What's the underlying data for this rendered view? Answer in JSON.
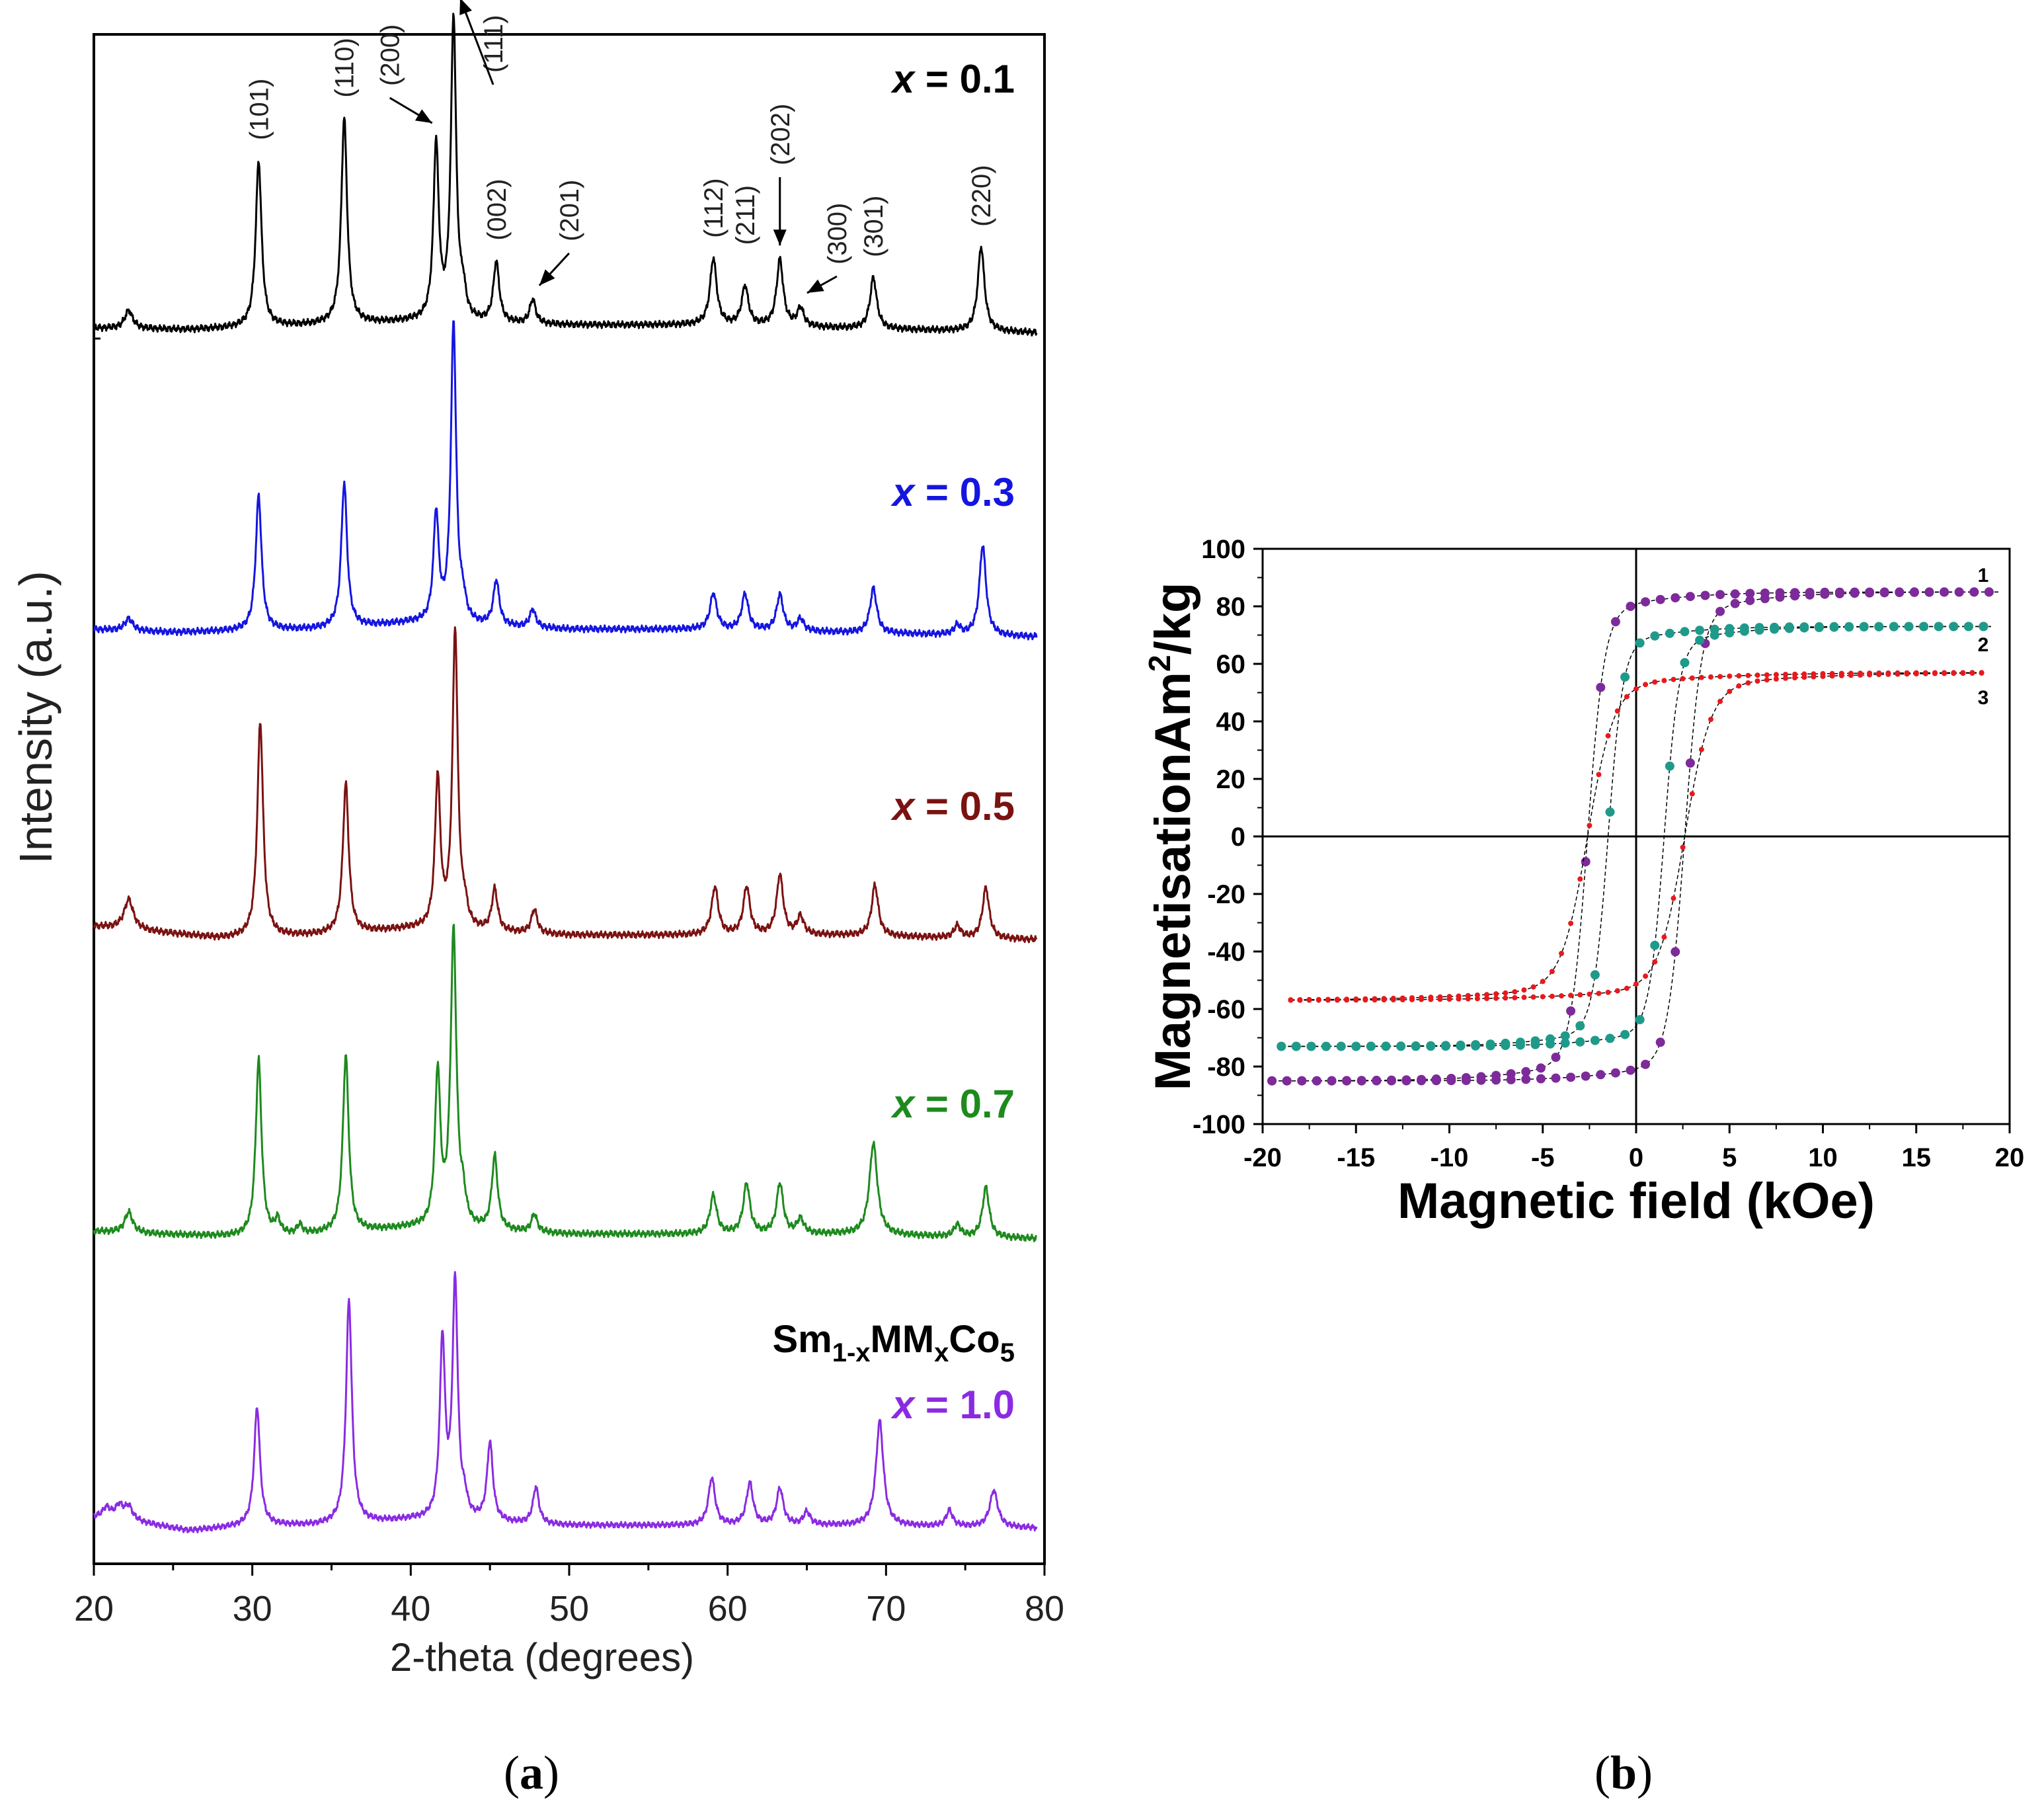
{
  "panel_labels": {
    "a": "a",
    "b": "b"
  },
  "chart_data": [
    {
      "type": "line",
      "panel": "a",
      "title": "",
      "xlabel": "2-theta (degrees)",
      "ylabel": "Intensity (a.u.)",
      "xlim": [
        20,
        80
      ],
      "xticks": [
        20,
        30,
        40,
        50,
        60,
        70,
        80
      ],
      "y_ticks_shown": false,
      "compound_label": {
        "base": "Sm",
        "sub1": "1-x",
        "mid": "MM",
        "sub2": "x",
        "end": "Co",
        "sub3": "5"
      },
      "series": [
        {
          "name": "x = 0.1",
          "label_var": "x",
          "label_rest": " = 0.1",
          "color": "#000000",
          "baseline": [
            [
              20,
              0.03
            ],
            [
              26,
              0.025
            ],
            [
              34,
              0.04
            ],
            [
              40,
              0.05
            ],
            [
              50,
              0.04
            ],
            [
              58,
              0.04
            ],
            [
              67,
              0.03
            ],
            [
              75,
              0.02
            ],
            [
              79.5,
              0.015
            ]
          ],
          "peaks": [
            [
              22.2,
              0.06,
              0.3
            ],
            [
              30.4,
              0.55,
              0.22
            ],
            [
              35.8,
              0.68,
              0.22
            ],
            [
              41.6,
              0.58,
              0.2
            ],
            [
              42.7,
              1.0,
              0.2
            ],
            [
              43.3,
              0.08,
              0.2
            ],
            [
              45.4,
              0.2,
              0.22
            ],
            [
              47.7,
              0.08,
              0.22
            ],
            [
              59.1,
              0.22,
              0.25
            ],
            [
              61.1,
              0.13,
              0.25
            ],
            [
              63.3,
              0.22,
              0.25
            ],
            [
              64.6,
              0.06,
              0.25
            ],
            [
              69.2,
              0.17,
              0.25
            ],
            [
              76.0,
              0.28,
              0.25
            ]
          ]
        },
        {
          "name": "x = 0.3",
          "label_var": "x",
          "label_rest": " = 0.3",
          "color": "#1515e0",
          "baseline": [
            [
              20,
              0.04
            ],
            [
              25,
              0.03
            ],
            [
              34,
              0.04
            ],
            [
              40,
              0.06
            ],
            [
              50,
              0.04
            ],
            [
              58,
              0.04
            ],
            [
              67,
              0.03
            ],
            [
              75,
              0.02
            ],
            [
              79.5,
              0.015
            ]
          ],
          "peaks": [
            [
              22.2,
              0.04,
              0.3
            ],
            [
              30.4,
              0.45,
              0.22
            ],
            [
              35.8,
              0.48,
              0.22
            ],
            [
              41.6,
              0.36,
              0.2
            ],
            [
              42.7,
              1.0,
              0.2
            ],
            [
              43.3,
              0.06,
              0.2
            ],
            [
              45.4,
              0.15,
              0.22
            ],
            [
              47.7,
              0.06,
              0.22
            ],
            [
              59.1,
              0.12,
              0.25
            ],
            [
              61.1,
              0.12,
              0.25
            ],
            [
              63.3,
              0.12,
              0.25
            ],
            [
              64.6,
              0.04,
              0.25
            ],
            [
              69.2,
              0.15,
              0.25
            ],
            [
              74.5,
              0.03,
              0.25
            ],
            [
              76.1,
              0.3,
              0.25
            ]
          ]
        },
        {
          "name": "x = 0.5",
          "label_var": "x",
          "label_rest": " = 0.5",
          "color": "#7b1212",
          "baseline": [
            [
              20,
              0.06
            ],
            [
              24,
              0.04
            ],
            [
              28,
              0.02
            ],
            [
              34,
              0.03
            ],
            [
              40,
              0.05
            ],
            [
              50,
              0.03
            ],
            [
              58,
              0.03
            ],
            [
              67,
              0.03
            ],
            [
              75,
              0.02
            ],
            [
              79.5,
              0.015
            ]
          ],
          "peaks": [
            [
              22.2,
              0.1,
              0.35
            ],
            [
              30.5,
              0.72,
              0.22
            ],
            [
              35.9,
              0.5,
              0.22
            ],
            [
              41.7,
              0.5,
              0.2
            ],
            [
              42.8,
              1.0,
              0.2
            ],
            [
              43.4,
              0.06,
              0.2
            ],
            [
              45.3,
              0.14,
              0.22
            ],
            [
              47.8,
              0.08,
              0.22
            ],
            [
              59.2,
              0.16,
              0.25
            ],
            [
              61.2,
              0.16,
              0.25
            ],
            [
              63.3,
              0.2,
              0.25
            ],
            [
              64.6,
              0.06,
              0.25
            ],
            [
              69.3,
              0.17,
              0.25
            ],
            [
              74.5,
              0.04,
              0.25
            ],
            [
              76.3,
              0.17,
              0.25
            ]
          ]
        },
        {
          "name": "x = 0.7",
          "label_var": "x",
          "label_rest": " = 0.7",
          "color": "#1e8a1e",
          "baseline": [
            [
              20,
              0.04
            ],
            [
              24,
              0.03
            ],
            [
              30,
              0.02
            ],
            [
              34,
              0.03
            ],
            [
              40,
              0.05
            ],
            [
              50,
              0.03
            ],
            [
              58,
              0.03
            ],
            [
              67,
              0.03
            ],
            [
              75,
              0.02
            ],
            [
              79.5,
              0.015
            ]
          ],
          "peaks": [
            [
              22.2,
              0.07,
              0.3
            ],
            [
              30.4,
              0.6,
              0.22
            ],
            [
              31.6,
              0.05,
              0.2
            ],
            [
              33.0,
              0.03,
              0.2
            ],
            [
              35.9,
              0.6,
              0.22
            ],
            [
              41.7,
              0.52,
              0.2
            ],
            [
              42.7,
              1.0,
              0.22
            ],
            [
              43.3,
              0.08,
              0.2
            ],
            [
              45.3,
              0.25,
              0.22
            ],
            [
              47.8,
              0.06,
              0.22
            ],
            [
              59.1,
              0.13,
              0.25
            ],
            [
              61.2,
              0.17,
              0.25
            ],
            [
              63.3,
              0.17,
              0.25
            ],
            [
              64.6,
              0.05,
              0.25
            ],
            [
              69.2,
              0.31,
              0.3
            ],
            [
              74.5,
              0.04,
              0.25
            ],
            [
              76.3,
              0.17,
              0.25
            ]
          ]
        },
        {
          "name": "x = 1.0",
          "label_var": "x",
          "label_rest": " = 1.0",
          "color": "#8a2be2",
          "baseline": [
            [
              20,
              0.05
            ],
            [
              22,
              0.04
            ],
            [
              24,
              0.02
            ],
            [
              26,
              0.0
            ],
            [
              30,
              0.02
            ],
            [
              34,
              0.02
            ],
            [
              40,
              0.04
            ],
            [
              50,
              0.02
            ],
            [
              58,
              0.02
            ],
            [
              67,
              0.02
            ],
            [
              75,
              0.015
            ],
            [
              79.5,
              0.01
            ]
          ],
          "peaks": [
            [
              20.8,
              0.04,
              0.3
            ],
            [
              21.6,
              0.05,
              0.3
            ],
            [
              22.2,
              0.05,
              0.3
            ],
            [
              30.3,
              0.45,
              0.22
            ],
            [
              36.1,
              0.85,
              0.22
            ],
            [
              42.0,
              0.68,
              0.2
            ],
            [
              42.8,
              0.9,
              0.2
            ],
            [
              43.4,
              0.06,
              0.2
            ],
            [
              45.0,
              0.3,
              0.22
            ],
            [
              47.9,
              0.14,
              0.22
            ],
            [
              59.0,
              0.18,
              0.25
            ],
            [
              61.4,
              0.16,
              0.25
            ],
            [
              63.3,
              0.14,
              0.25
            ],
            [
              65.0,
              0.05,
              0.25
            ],
            [
              69.6,
              0.4,
              0.28
            ],
            [
              74.0,
              0.06,
              0.25
            ],
            [
              76.8,
              0.14,
              0.3
            ]
          ]
        }
      ],
      "peak_annotations": [
        {
          "text": "(101)",
          "x": 30.4,
          "arrow": false
        },
        {
          "text": "(110)",
          "x": 35.8,
          "arrow": false
        },
        {
          "text": "(200)",
          "x": 41.6,
          "arrow": true
        },
        {
          "text": "(111)",
          "x": 42.7,
          "arrow": true
        },
        {
          "text": "(002)",
          "x": 45.4,
          "arrow": false
        },
        {
          "text": "(201)",
          "x": 47.7,
          "arrow": true
        },
        {
          "text": "(112)",
          "x": 59.1,
          "arrow": false
        },
        {
          "text": "(211)",
          "x": 61.1,
          "arrow": false
        },
        {
          "text": "(202)",
          "x": 63.3,
          "arrow": true
        },
        {
          "text": "(300)",
          "x": 64.6,
          "arrow": true
        },
        {
          "text": "(301)",
          "x": 69.2,
          "arrow": false
        },
        {
          "text": "(220)",
          "x": 76.0,
          "arrow": false
        }
      ]
    },
    {
      "type": "line",
      "panel": "b",
      "title": "",
      "xlabel": "Magnetic field (kOe)",
      "ylabel_main": "MagnetisationAm",
      "ylabel_sup": "2",
      "ylabel_end": "/kg",
      "xlim": [
        -20,
        20
      ],
      "ylim": [
        -100,
        100
      ],
      "xticks": [
        -20,
        -15,
        -10,
        -5,
        0,
        5,
        10,
        15,
        20
      ],
      "yticks": [
        -100,
        -80,
        -60,
        -40,
        -20,
        0,
        20,
        40,
        60,
        80,
        100
      ],
      "zero_lines": true,
      "series": [
        {
          "name": "1",
          "color": "#7d2a9a",
          "Ms": 85,
          "Hc": 2.6,
          "w": 0.9,
          "tailH": 3.4,
          "tailMs": 80,
          "x_range": [
            -19.5,
            19.5
          ],
          "step": 0.8,
          "marker_size": 7
        },
        {
          "name": "2",
          "color": "#1f9a8a",
          "Ms": 73,
          "Hc": 1.5,
          "w": 0.8,
          "tailH": 3.2,
          "tailMs": 65,
          "x_range": [
            -19.0,
            19.0
          ],
          "step": 0.8,
          "marker_size": 7
        },
        {
          "name": "3",
          "color": "#e8191d",
          "Ms": 57,
          "Hc": 2.6,
          "w": 1.4,
          "tailH": 3.0,
          "tailMs": 50,
          "x_range": [
            -18.5,
            18.5
          ],
          "step": 0.5,
          "marker_size": 4
        }
      ]
    }
  ]
}
